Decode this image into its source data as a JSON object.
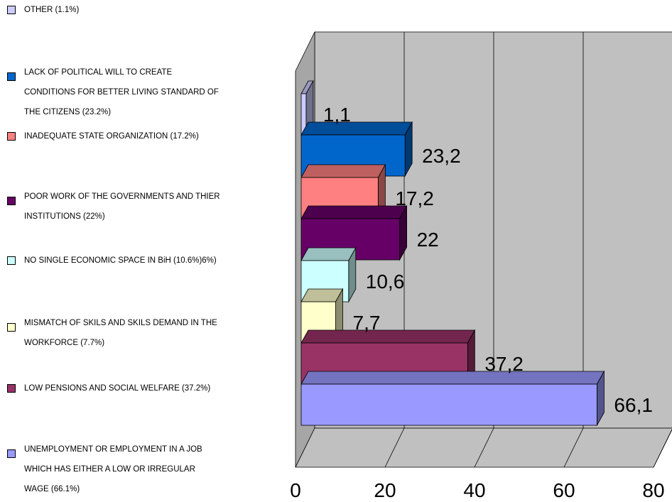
{
  "chart_data": {
    "type": "bar",
    "orientation": "horizontal",
    "three_d": true,
    "title": "",
    "xlabel": "",
    "ylabel": "",
    "xlim": [
      0,
      80
    ],
    "x_ticks": [
      0,
      20,
      40,
      60,
      80
    ],
    "grid": true,
    "legend_position": "left",
    "categories": [
      "UNEMPLOYMENT OR EMPLOYMENT IN A JOB WHICH HAS EITHER A LOW OR IRREGULAR WAGE (66.1%)",
      "LOW PENSIONS AND SOCIAL WELFARE (37.2%)",
      "MISMATCH OF SKILS AND SKILS DEMAND IN THE WORKFORCE (7.7%)",
      "NO SINGLE ECONOMIC SPACE IN BiH (10.6%)6%)",
      "POOR WORK OF THE GOVERNMENTS AND THIER INSTITUTIONS (22%)",
      "INADEQUATE STATE ORGANIZATION (17.2%)",
      "LACK OF POLITICAL WILL TO CREATE CONDITIONS FOR  BETTER LIVING STANDARD OF THE CITIZENS (23.2%)",
      "OTHER (1.1%)"
    ],
    "values": [
      66.1,
      37.2,
      7.7,
      10.6,
      22,
      17.2,
      23.2,
      1.1
    ],
    "value_labels": [
      "66,1",
      "37,2",
      "7,7",
      "10,6",
      "22",
      "17,2",
      "23,2",
      "1,1"
    ],
    "colors": [
      "#9999FF",
      "#993366",
      "#FFFFCC",
      "#CCFFFF",
      "#660066",
      "#FF8080",
      "#0066CC",
      "#CCCCFF"
    ]
  },
  "legend": [
    {
      "lines": [
        "OTHER (1.1%)"
      ],
      "color": "#CCCCFF"
    },
    {
      "lines": [
        "LACK OF POLITICAL WILL TO CREATE",
        "CONDITIONS FOR  BETTER LIVING STANDARD OF",
        "THE CITIZENS (23.2%)"
      ],
      "color": "#0066CC"
    },
    {
      "lines": [
        "INADEQUATE STATE ORGANIZATION (17.2%)"
      ],
      "color": "#FF8080"
    },
    {
      "lines": [
        "POOR WORK OF THE GOVERNMENTS AND THIER",
        "INSTITUTIONS (22%)"
      ],
      "color": "#660066"
    },
    {
      "lines": [
        "NO SINGLE ECONOMIC SPACE IN BiH (10.6%)6%)"
      ],
      "color": "#CCFFFF"
    },
    {
      "lines": [
        "MISMATCH OF SKILS AND SKILS DEMAND IN THE",
        "WORKFORCE (7.7%)"
      ],
      "color": "#FFFFCC"
    },
    {
      "lines": [
        "LOW PENSIONS AND SOCIAL WELFARE (37.2%)"
      ],
      "color": "#993366"
    },
    {
      "lines": [
        "UNEMPLOYMENT OR EMPLOYMENT IN A JOB",
        "WHICH HAS EITHER A LOW OR IRREGULAR",
        "WAGE (66.1%)"
      ],
      "color": "#9999FF"
    }
  ]
}
